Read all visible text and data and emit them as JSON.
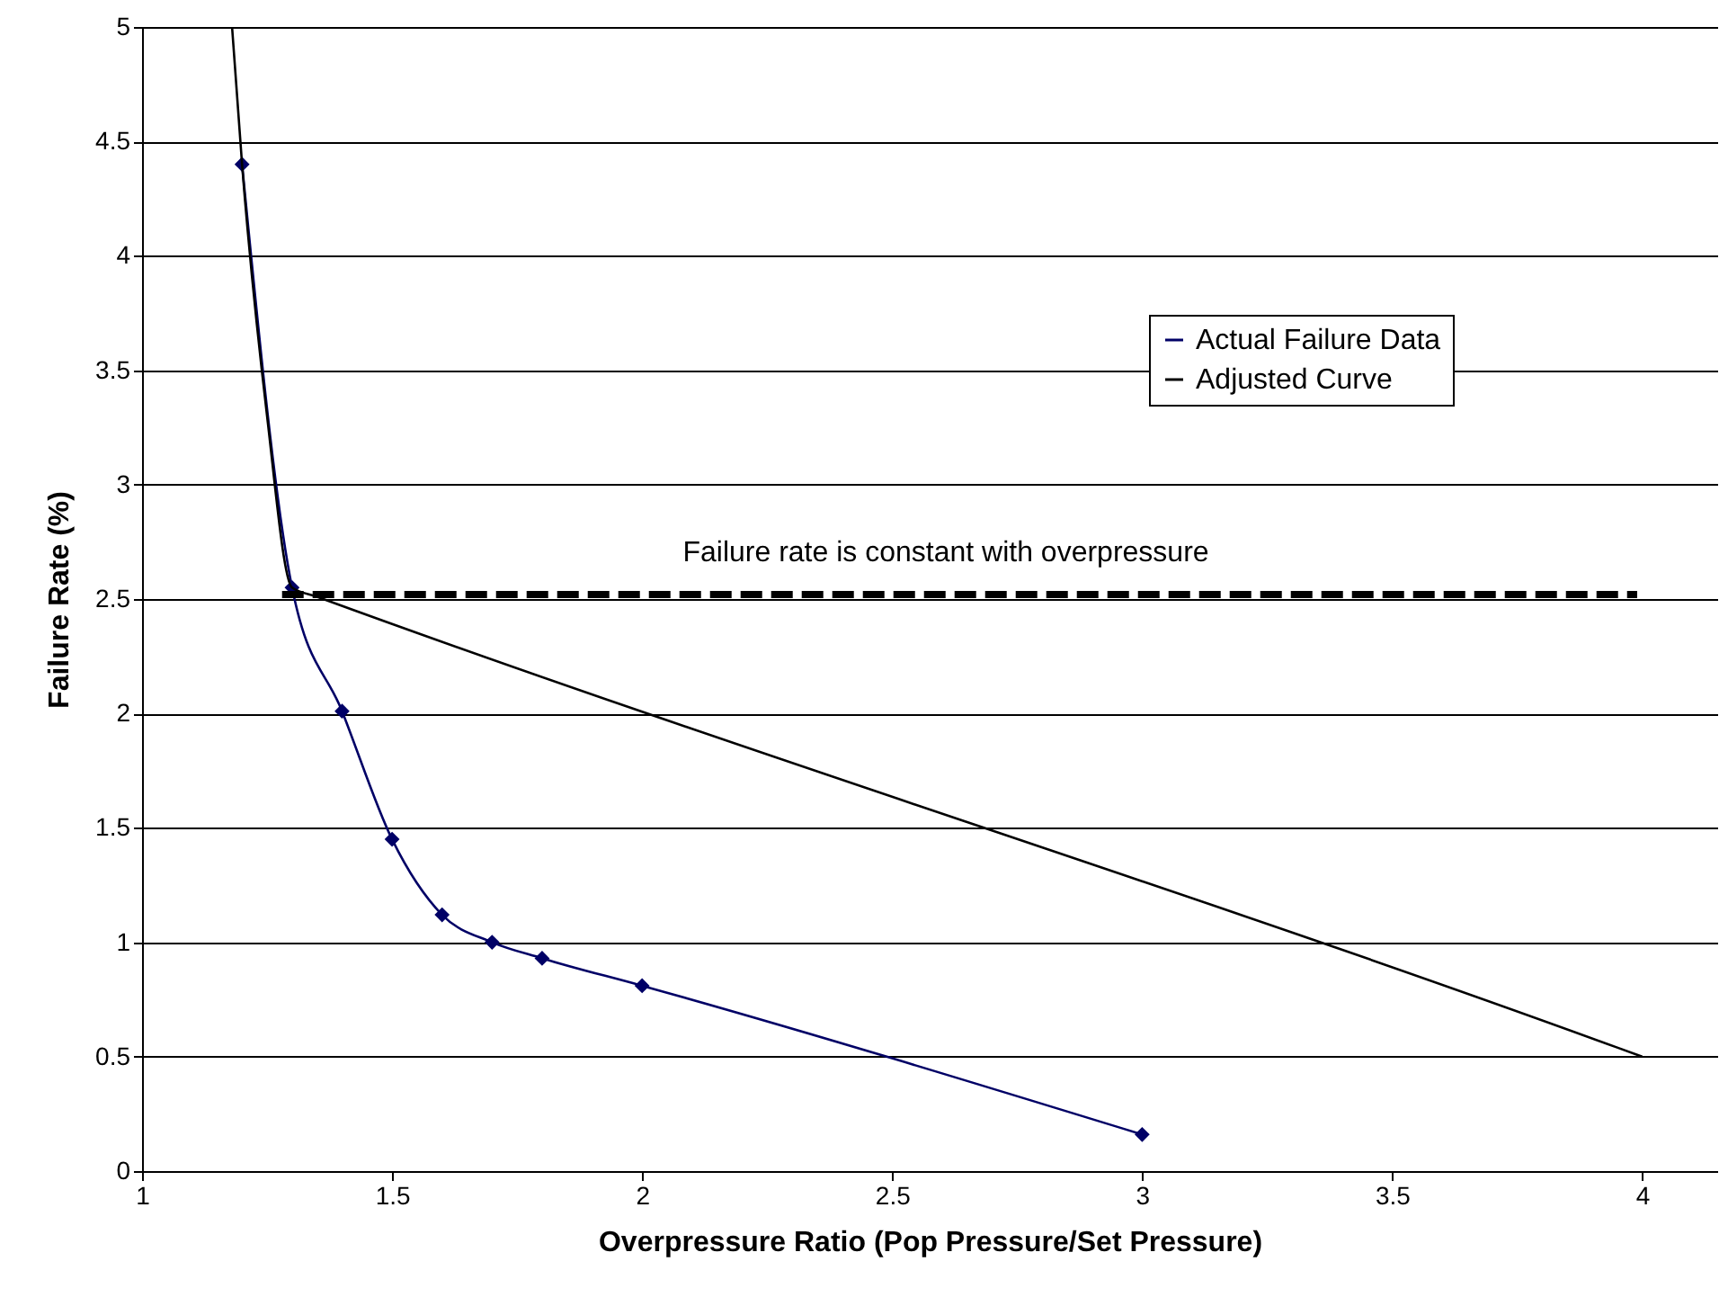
{
  "chart_data": {
    "type": "line",
    "xlabel": "Overpressure Ratio (Pop Pressure/Set Pressure)",
    "ylabel": "Failure Rate (%)",
    "xlim": [
      1,
      4.15
    ],
    "xticks": [
      1,
      1.5,
      2,
      2.5,
      3,
      3.5,
      4
    ],
    "ylim": [
      0,
      5
    ],
    "yticks": [
      0,
      0.5,
      1,
      1.5,
      2,
      2.5,
      3,
      3.5,
      4,
      4.5,
      5
    ],
    "grid": "y",
    "legend": "top right",
    "marker": "diamond",
    "line_style": "solid",
    "series": [
      {
        "name": "Actual Failure Data",
        "color": "#000066",
        "x": [
          1.2,
          1.3,
          1.4,
          1.5,
          1.6,
          1.7,
          1.8,
          2.0,
          3.0
        ],
        "values": [
          4.4,
          2.55,
          2.01,
          1.45,
          1.12,
          1.0,
          0.93,
          0.81,
          0.16
        ]
      },
      {
        "name": "Adjusted Curve",
        "color": "#000000",
        "marker": "none",
        "x": [
          1.18,
          1.2,
          1.25,
          1.3,
          1.35,
          3.95,
          4.0
        ],
        "values": [
          5,
          4.4,
          3.3,
          2.55,
          2.51,
          0.54,
          0.5
        ]
      },
      {
        "color": "#000000",
        "marker": "none",
        "line_style": "dashed",
        "x": [
          1.28,
          3.99
        ],
        "values": [
          2.52,
          2.52
        ]
      }
    ],
    "annotations": [
      "Failure rate is constant with overpressure"
    ]
  }
}
